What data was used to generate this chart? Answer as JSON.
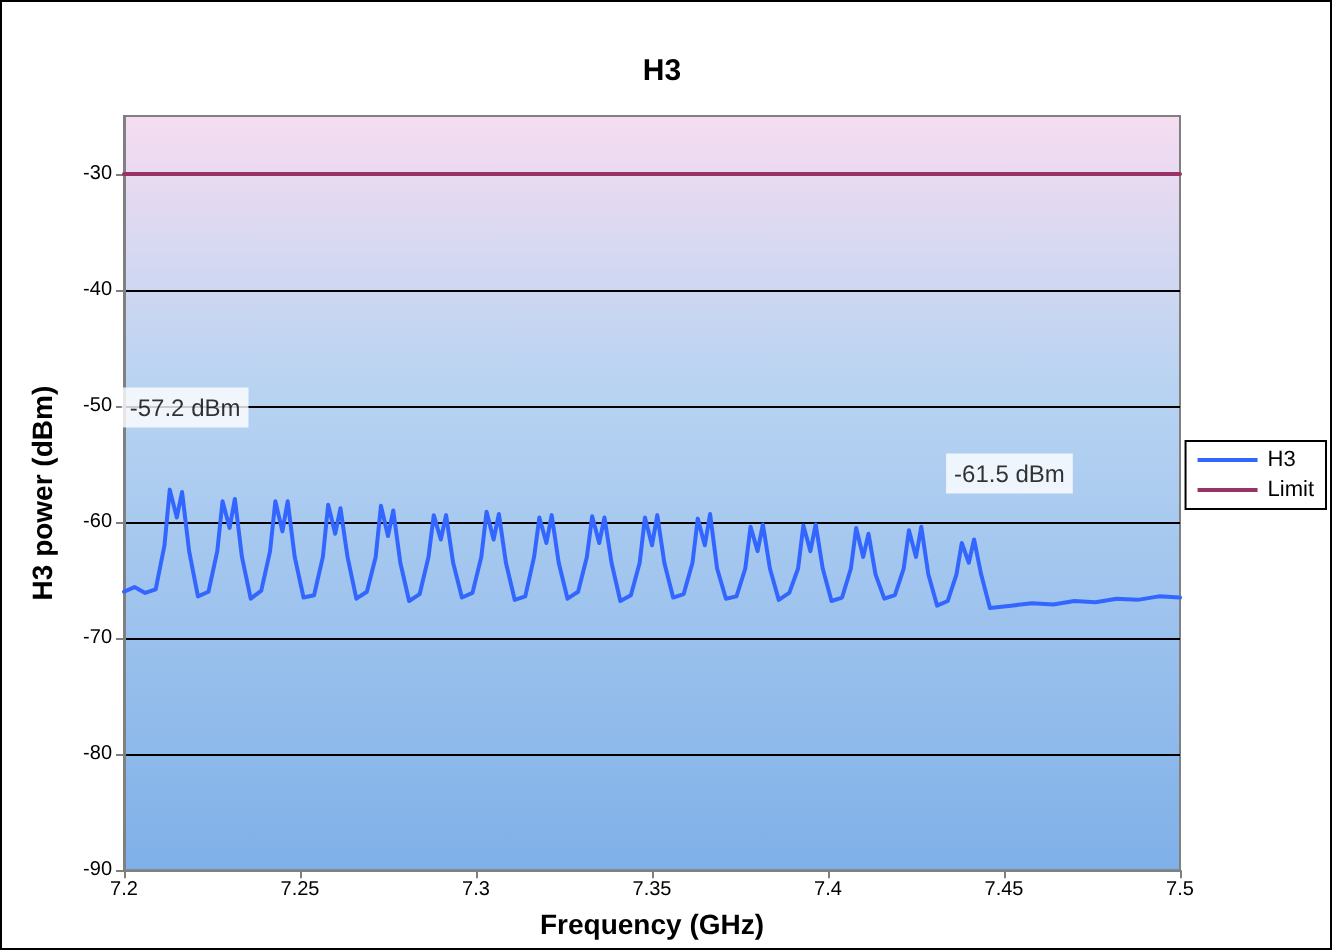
{
  "chart_data": {
    "type": "line",
    "title": "H3",
    "xlabel": "Frequency (GHz)",
    "ylabel": "H3 power (dBm)",
    "xlim": [
      7.2,
      7.5
    ],
    "xticks": [
      7.2,
      7.25,
      7.3,
      7.35,
      7.4,
      7.45,
      7.5
    ],
    "ylim": [
      -90,
      -25
    ],
    "yticks": [
      -90,
      -80,
      -70,
      -60,
      -50,
      -40,
      -30
    ],
    "grid": "y",
    "legend": "right",
    "marker": "none",
    "line_style": "solid",
    "series": [
      {
        "name": "H3",
        "color": "#3366ff",
        "x": [
          7.2,
          7.203,
          7.206,
          7.209,
          7.2115,
          7.213,
          7.215,
          7.2165,
          7.2185,
          7.221,
          7.224,
          7.2265,
          7.228,
          7.23,
          7.2315,
          7.2335,
          7.236,
          7.239,
          7.2415,
          7.243,
          7.245,
          7.2465,
          7.2485,
          7.251,
          7.254,
          7.2565,
          7.258,
          7.26,
          7.2615,
          7.2635,
          7.266,
          7.269,
          7.2715,
          7.273,
          7.275,
          7.2765,
          7.2785,
          7.281,
          7.284,
          7.2865,
          7.288,
          7.29,
          7.2915,
          7.2935,
          7.296,
          7.299,
          7.3015,
          7.303,
          7.305,
          7.3065,
          7.3085,
          7.311,
          7.314,
          7.3165,
          7.318,
          7.32,
          7.3215,
          7.3235,
          7.326,
          7.329,
          7.3315,
          7.333,
          7.335,
          7.3365,
          7.3385,
          7.341,
          7.344,
          7.3465,
          7.348,
          7.35,
          7.3515,
          7.3535,
          7.356,
          7.359,
          7.3615,
          7.363,
          7.365,
          7.3665,
          7.3685,
          7.371,
          7.374,
          7.3765,
          7.378,
          7.38,
          7.3815,
          7.3835,
          7.386,
          7.389,
          7.3915,
          7.393,
          7.395,
          7.3965,
          7.3985,
          7.401,
          7.404,
          7.4065,
          7.408,
          7.41,
          7.4115,
          7.4135,
          7.416,
          7.419,
          7.4215,
          7.423,
          7.425,
          7.4265,
          7.4285,
          7.431,
          7.434,
          7.4365,
          7.438,
          7.44,
          7.4415,
          7.4435,
          7.446,
          7.452,
          7.458,
          7.464,
          7.47,
          7.476,
          7.482,
          7.488,
          7.494,
          7.5
        ],
        "values": [
          -66.0,
          -65.6,
          -66.1,
          -65.8,
          -62,
          -57.2,
          -59.6,
          -57.4,
          -62.5,
          -66.4,
          -66.0,
          -62.5,
          -58.2,
          -60.5,
          -58.0,
          -63,
          -66.6,
          -65.9,
          -62.5,
          -58.2,
          -60.8,
          -58.2,
          -63,
          -66.5,
          -66.3,
          -63,
          -58.5,
          -61,
          -58.8,
          -63,
          -66.6,
          -66.0,
          -63,
          -58.6,
          -61.2,
          -59.0,
          -63.5,
          -66.8,
          -66.2,
          -63,
          -59.4,
          -61.5,
          -59.4,
          -63.5,
          -66.5,
          -66.1,
          -63,
          -59.1,
          -61.5,
          -59.3,
          -63.5,
          -66.7,
          -66.4,
          -63,
          -59.6,
          -61.8,
          -59.4,
          -63.5,
          -66.6,
          -66.0,
          -63,
          -59.5,
          -61.8,
          -59.6,
          -63.5,
          -66.8,
          -66.3,
          -63.5,
          -59.6,
          -62,
          -59.4,
          -63.5,
          -66.5,
          -66.2,
          -63.5,
          -59.7,
          -62,
          -59.3,
          -64,
          -66.6,
          -66.4,
          -64,
          -60.4,
          -62.5,
          -60.2,
          -64,
          -66.7,
          -66.1,
          -64,
          -60.3,
          -62.5,
          -60.2,
          -64,
          -66.8,
          -66.5,
          -64,
          -60.5,
          -63,
          -61.0,
          -64.5,
          -66.6,
          -66.3,
          -64,
          -60.7,
          -63,
          -60.4,
          -64.5,
          -67.2,
          -66.8,
          -64.5,
          -61.8,
          -63.5,
          -61.5,
          -64.5,
          -67.4,
          -67.2,
          -67.0,
          -67.1,
          -66.8,
          -66.9,
          -66.6,
          -66.7,
          -66.4,
          -66.5
        ]
      },
      {
        "name": "Limit",
        "color": "#993366",
        "x": [
          7.2,
          7.5
        ],
        "values": [
          -30,
          -30
        ]
      }
    ],
    "annotations": [
      {
        "text": "-57.2 dBm",
        "x": 7.213,
        "y": -57.2
      },
      {
        "text": "-61.5 dBm",
        "x": 7.4415,
        "y": -61.5
      }
    ]
  }
}
